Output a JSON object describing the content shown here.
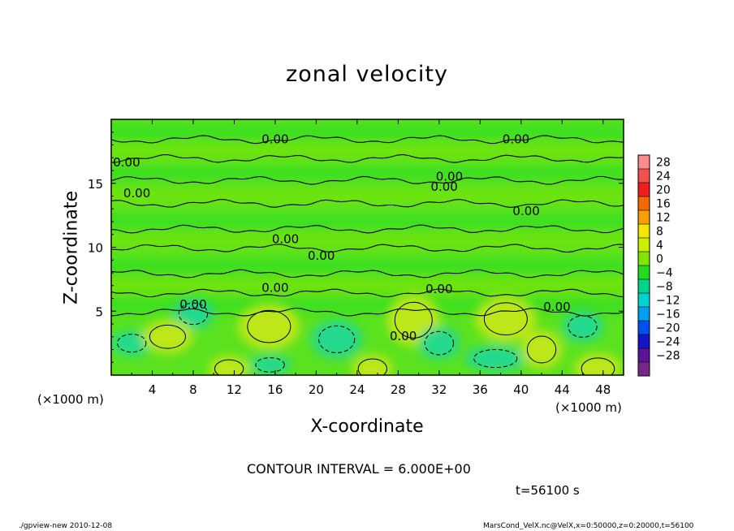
{
  "chart_data": {
    "type": "heatmap",
    "title": "zonal velocity",
    "xlabel": "X-coordinate",
    "ylabel": "Z-coordinate",
    "x_unit_left": "(×1000 m)",
    "x_unit_right": "(×1000 m)",
    "x_ticks": [
      4,
      8,
      12,
      16,
      20,
      24,
      28,
      32,
      36,
      40,
      44,
      48
    ],
    "y_ticks": [
      5,
      10,
      15
    ],
    "xlim": [
      0,
      50
    ],
    "ylim": [
      0,
      20
    ],
    "contour_interval": "CONTOUR INTERVAL = 6.000E+00",
    "time": "t=56100 s",
    "colorbar": {
      "levels": [
        28,
        24,
        20,
        16,
        12,
        8,
        4,
        0,
        -4,
        -8,
        -12,
        -16,
        -20,
        -24,
        -28
      ],
      "colors": [
        "#fa8c8c",
        "#f45050",
        "#f01e1e",
        "#f46a00",
        "#f8a000",
        "#f4e600",
        "#c8f000",
        "#80e600",
        "#22dc22",
        "#00d28c",
        "#00d2d2",
        "#00a0f0",
        "#0050f0",
        "#1414c8",
        "#5a1496",
        "#78288c"
      ]
    },
    "contour_labels": [
      {
        "text": "0.00",
        "x": 16.0,
        "y": 18.5
      },
      {
        "text": "0.00",
        "x": 39.5,
        "y": 18.5
      },
      {
        "text": "0.00",
        "x": 1.5,
        "y": 16.7
      },
      {
        "text": "0.00",
        "x": 33.0,
        "y": 15.6
      },
      {
        "text": "0.00",
        "x": 32.5,
        "y": 14.8
      },
      {
        "text": "0.00",
        "x": 2.5,
        "y": 14.3
      },
      {
        "text": "0.00",
        "x": 40.5,
        "y": 12.9
      },
      {
        "text": "0.00",
        "x": 17.0,
        "y": 10.7
      },
      {
        "text": "0.00",
        "x": 20.5,
        "y": 9.4
      },
      {
        "text": "0.00",
        "x": 16.0,
        "y": 6.9
      },
      {
        "text": "0.00",
        "x": 32.0,
        "y": 6.8
      },
      {
        "text": "0.00",
        "x": 8.0,
        "y": 5.6
      },
      {
        "text": "0.00",
        "x": 43.5,
        "y": 5.4
      },
      {
        "text": "0.00",
        "x": 28.5,
        "y": 3.1
      }
    ],
    "blobs": [
      {
        "x": 15.4,
        "y": 3.8,
        "rx": 3.0,
        "ry": 1.8,
        "value": 6
      },
      {
        "x": 29.5,
        "y": 4.3,
        "rx": 2.6,
        "ry": 2.0,
        "value": 7
      },
      {
        "x": 38.5,
        "y": 4.4,
        "rx": 3.0,
        "ry": 1.8,
        "value": 7
      },
      {
        "x": 47.5,
        "y": 0.5,
        "rx": 2.3,
        "ry": 1.2,
        "value": 6
      },
      {
        "x": 11.5,
        "y": 0.5,
        "rx": 2.0,
        "ry": 1.0,
        "value": 5
      },
      {
        "x": 25.5,
        "y": 0.5,
        "rx": 2.0,
        "ry": 1.1,
        "value": 5
      },
      {
        "x": 46.0,
        "y": 3.8,
        "rx": 2.0,
        "ry": 1.2,
        "value": -6
      },
      {
        "x": 37.5,
        "y": 1.3,
        "rx": 3.0,
        "ry": 1.0,
        "value": -6
      },
      {
        "x": 22.0,
        "y": 2.8,
        "rx": 2.5,
        "ry": 1.5,
        "value": -5
      },
      {
        "x": 8.0,
        "y": 4.8,
        "rx": 2.0,
        "ry": 1.2,
        "value": -5
      },
      {
        "x": 15.5,
        "y": 0.8,
        "rx": 2.0,
        "ry": 0.8,
        "value": -6
      },
      {
        "x": 32.0,
        "y": 2.5,
        "rx": 2.0,
        "ry": 1.3,
        "value": -4
      },
      {
        "x": 2.0,
        "y": 2.5,
        "rx": 2.0,
        "ry": 1.0,
        "value": -4
      },
      {
        "x": 5.5,
        "y": 3.0,
        "rx": 2.5,
        "ry": 1.3,
        "value": 3
      },
      {
        "x": 42.0,
        "y": 2.0,
        "rx": 2.0,
        "ry": 1.5,
        "value": 3
      }
    ],
    "bands": [
      {
        "y": 19.0,
        "value": -2
      },
      {
        "y": 17.5,
        "value": 2
      },
      {
        "y": 15.8,
        "value": -2
      },
      {
        "y": 14.0,
        "value": 2
      },
      {
        "y": 12.0,
        "value": -2
      },
      {
        "y": 10.5,
        "value": 2
      },
      {
        "y": 8.5,
        "value": -2
      },
      {
        "y": 7.0,
        "value": 2
      },
      {
        "y": 5.5,
        "value": -3
      }
    ]
  },
  "footer": {
    "left": "./gpview-new  2010-12-08",
    "right": "MarsCond_VelX.nc@VelX,x=0:50000,z=0:20000,t=56100"
  }
}
